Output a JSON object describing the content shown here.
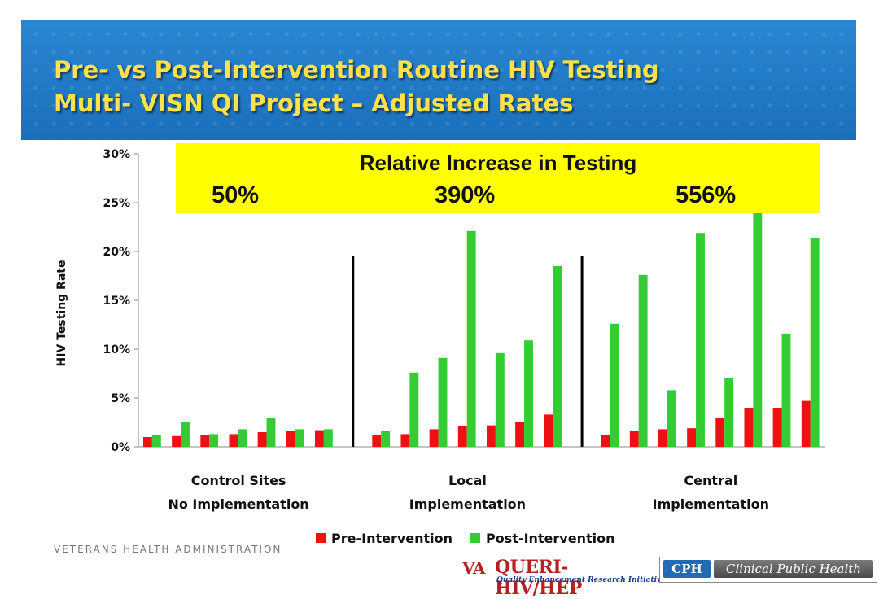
{
  "slide": {
    "title_line1": "Pre- vs Post-Intervention Routine HIV Testing",
    "title_line2": "Multi- VISN QI Project – Adjusted Rates",
    "footer_org": "VETERANS HEALTH ADMINISTRATION"
  },
  "callout": {
    "title": "Relative Increase in Testing",
    "values": [
      "50%",
      "390%",
      "556%"
    ]
  },
  "logos": {
    "queri_mark": "VA",
    "queri_name": "QUERI-HIV/HEP",
    "queri_tagline": "Quality Enhancement Research Initiative",
    "cph_badge": "CPH",
    "cph_name": "Clinical Public Health"
  },
  "colors": {
    "pre": "#ee1111",
    "post": "#33cc33",
    "banner": "#1f78c4",
    "title": "#ffe14a",
    "callout_bg": "#ffff00"
  },
  "legend": {
    "pre_label": "Pre-Intervention",
    "post_label": "Post-Intervention"
  },
  "chart_data": {
    "type": "bar",
    "ylabel": "HIV Testing Rate",
    "ylim": [
      0,
      0.3
    ],
    "yticks": [
      "0%",
      "5%",
      "10%",
      "15%",
      "20%",
      "25%",
      "30%"
    ],
    "grid": false,
    "legend_position": "bottom",
    "groups": [
      {
        "label_line1": "Control Sites",
        "label_line2": "No Implementation",
        "pre": [
          0.01,
          0.011,
          0.012,
          0.013,
          0.015,
          0.016,
          0.017
        ],
        "post": [
          0.012,
          0.025,
          0.013,
          0.018,
          0.03,
          0.018,
          0.018
        ]
      },
      {
        "label_line1": "Local",
        "label_line2": "Implementation",
        "pre": [
          0.012,
          0.013,
          0.018,
          0.021,
          0.022,
          0.025,
          0.033
        ],
        "post": [
          0.016,
          0.076,
          0.091,
          0.221,
          0.096,
          0.109,
          0.185
        ]
      },
      {
        "label_line1": "Central",
        "label_line2": "Implementation",
        "pre": [
          0.012,
          0.016,
          0.018,
          0.019,
          0.03,
          0.04,
          0.04,
          0.047
        ],
        "post": [
          0.126,
          0.176,
          0.058,
          0.219,
          0.07,
          0.268,
          0.116,
          0.214
        ]
      }
    ],
    "series": [
      {
        "name": "Pre-Intervention"
      },
      {
        "name": "Post-Intervention"
      }
    ]
  }
}
